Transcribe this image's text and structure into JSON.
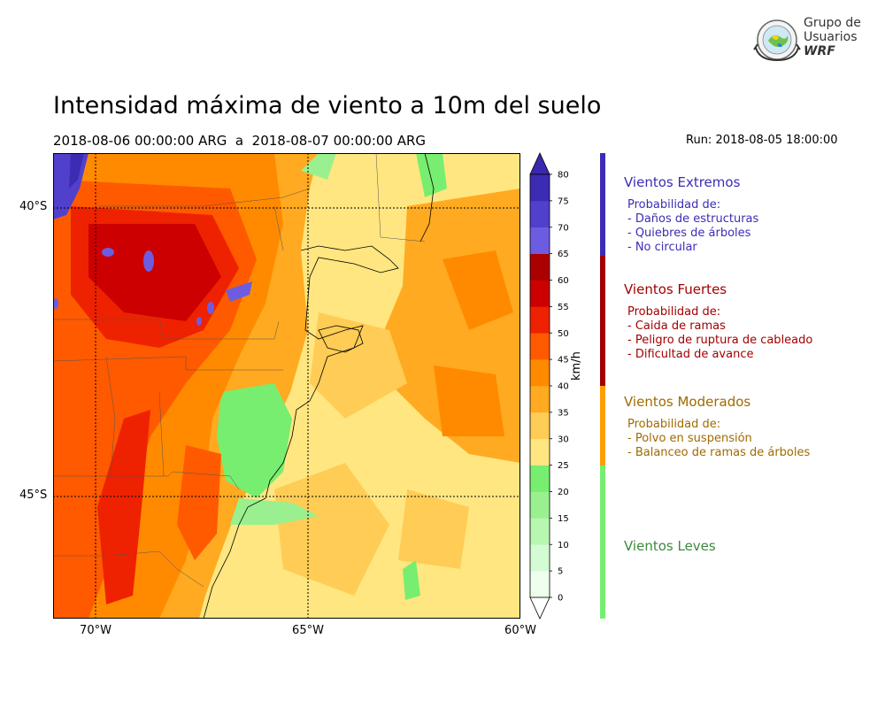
{
  "title": "Intensidad máxima de viento a 10m del suelo",
  "subtitle": "2018-08-06 00:00:00 ARG  a  2018-08-07 00:00:00 ARG",
  "run": "Run: 2018-08-05 18:00:00",
  "logo": {
    "line1": "Grupo de",
    "line2": "Usuarios",
    "line3": "WRF"
  },
  "map": {
    "lat_ticks": [
      "40°S",
      "45°S"
    ],
    "lon_ticks": [
      "70°W",
      "65°W",
      "60°W"
    ]
  },
  "colorbar": {
    "units": "km/h",
    "ticks": [
      "0",
      "5",
      "10",
      "15",
      "20",
      "25",
      "30",
      "35",
      "40",
      "45",
      "50",
      "55",
      "60",
      "65",
      "70",
      "75",
      "80"
    ],
    "colors": [
      "#eeffee",
      "#d4fcd4",
      "#b8f7b0",
      "#9af08f",
      "#78ee70",
      "#ffe680",
      "#ffcc55",
      "#ffaa20",
      "#ff8a00",
      "#ff5a00",
      "#ee2200",
      "#cc0000",
      "#aa0000",
      "#6e5ce0",
      "#5040cc",
      "#3c2cb4"
    ],
    "under_color": "#ffffff",
    "over_color": "#3a28b0"
  },
  "categories": [
    {
      "title": "Vientos Extremos",
      "color": "#3b2db5",
      "lines": [
        "Probabilidad de:",
        "- Daños de estructuras",
        "- Quiebres de árboles",
        "- No circular"
      ]
    },
    {
      "title": "Vientos Fuertes",
      "color": "#a30000",
      "lines": [
        "Probabilidad de:",
        "- Caida de ramas",
        "- Peligro de ruptura de cableado",
        "- Dificultad de avance"
      ]
    },
    {
      "title": "Vientos Moderados",
      "color": "#a06a00",
      "bar_color": "#ff9e00",
      "lines": [
        "Probabilidad de:",
        "- Polvo en suspensión",
        "- Balanceo de ramas de árboles"
      ]
    },
    {
      "title": "Vientos Leves",
      "color": "#3c8a3c",
      "bar_color": "#78ee70",
      "lines": []
    }
  ]
}
